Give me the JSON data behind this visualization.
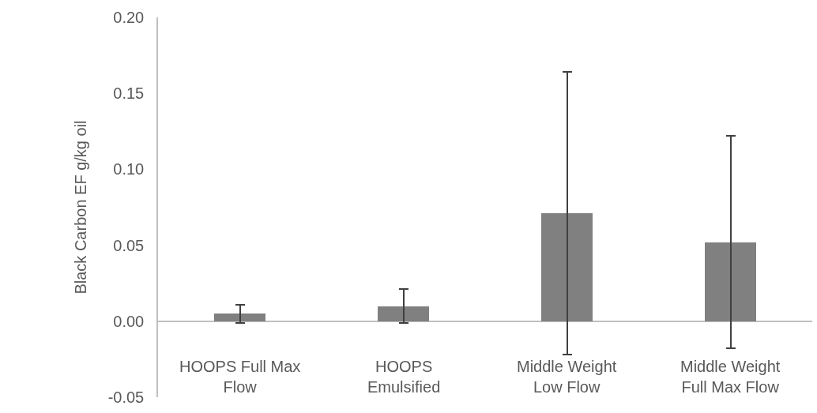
{
  "chart_data": {
    "type": "bar",
    "ylabel": "Black Carbon EF g/kg oil",
    "categories": [
      "HOOPS Full Max Flow",
      "HOOPS Emulsified",
      "Middle Weight Low Flow",
      "Middle Weight Full Max Flow"
    ],
    "values": [
      0.005,
      0.01,
      0.071,
      0.052
    ],
    "errors": [
      0.006,
      0.011,
      0.093,
      0.07
    ],
    "color": "#808080",
    "ylim": [
      -0.05,
      0.2
    ],
    "yticks": [
      {
        "value": -0.05,
        "label": "-0.05"
      },
      {
        "value": 0,
        "label": "0.00"
      },
      {
        "value": 0.05,
        "label": "0.05"
      },
      {
        "value": 0.1,
        "label": "0.10"
      },
      {
        "value": 0.15,
        "label": "0.15"
      },
      {
        "value": 0.2,
        "label": "0.20"
      }
    ],
    "grid": false,
    "legend": false
  }
}
